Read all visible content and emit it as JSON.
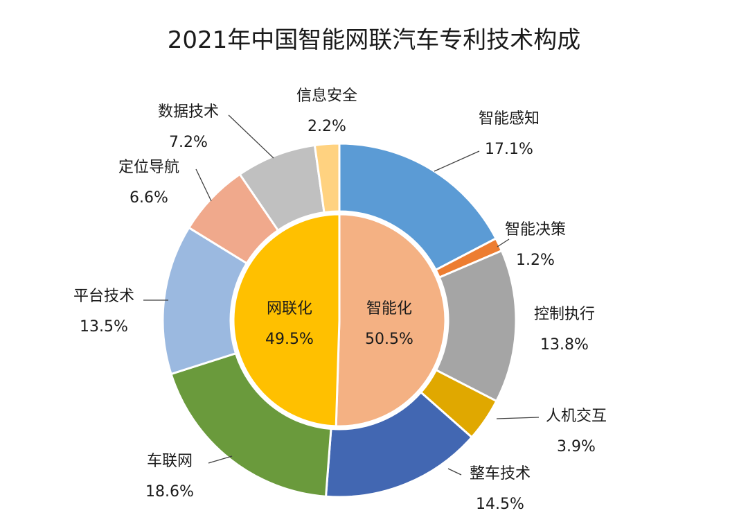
{
  "chart_data": {
    "type": "pie",
    "title": "2021年中国智能网联汽车专利技术构成",
    "inner_ring": [
      {
        "name": "智能化",
        "label": "50.5%",
        "value": 50.5,
        "color": "#f4b183"
      },
      {
        "name": "网联化",
        "label": "49.5%",
        "value": 49.5,
        "color": "#ffc000"
      }
    ],
    "outer_ring": [
      {
        "name": "智能感知",
        "label": "17.1%",
        "value": 17.1,
        "color": "#5b9bd5"
      },
      {
        "name": "智能决策",
        "label": "1.2%",
        "value": 1.2,
        "color": "#ed7d31"
      },
      {
        "name": "控制执行",
        "label": "13.8%",
        "value": 13.8,
        "color": "#a5a5a5"
      },
      {
        "name": "人机交互",
        "label": "3.9%",
        "value": 3.9,
        "color": "#e0a800"
      },
      {
        "name": "整车技术",
        "label": "14.5%",
        "value": 14.5,
        "color": "#4267b2"
      },
      {
        "name": "车联网",
        "label": "18.6%",
        "value": 18.6,
        "color": "#6a9a3c"
      },
      {
        "name": "平台技术",
        "label": "13.5%",
        "value": 13.5,
        "color": "#9bb9e0"
      },
      {
        "name": "定位导航",
        "label": "6.6%",
        "value": 6.6,
        "color": "#f0a98c"
      },
      {
        "name": "数据技术",
        "label": "7.2%",
        "value": 7.2,
        "color": "#c0c0c0"
      },
      {
        "name": "信息安全",
        "label": "2.2%",
        "value": 2.2,
        "color": "#ffd280"
      }
    ]
  }
}
